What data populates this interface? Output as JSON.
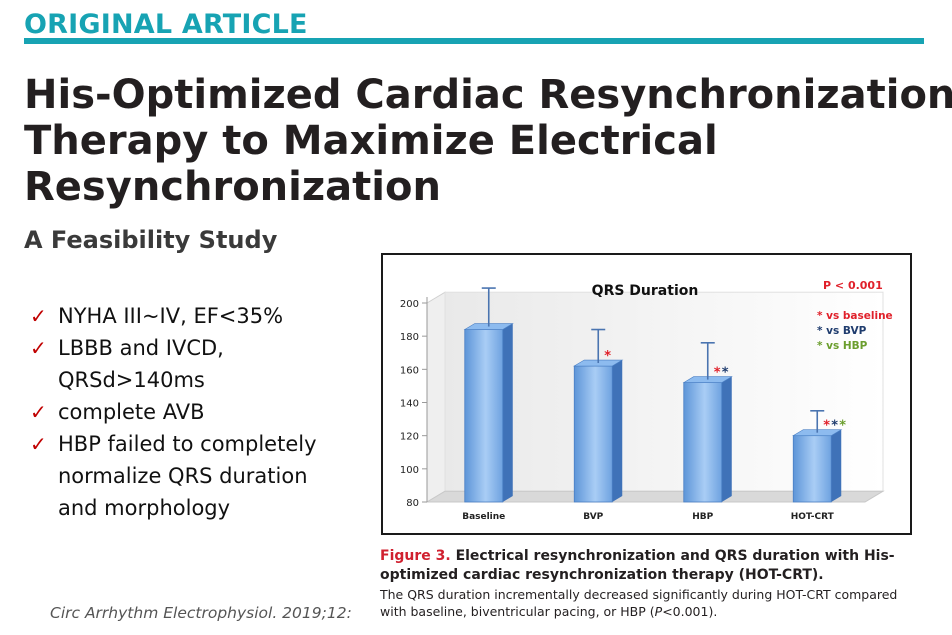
{
  "header": {
    "label": "ORIGINAL ARTICLE",
    "accent_color": "#17a3b3"
  },
  "article": {
    "title_lines": [
      "His-Optimized Cardiac Resynchronization",
      "Therapy to Maximize Electrical",
      "Resynchronization"
    ],
    "subtitle": "A Feasibility Study"
  },
  "bullets": [
    {
      "lines": [
        "NYHA III~IV, EF<35%"
      ]
    },
    {
      "lines": [
        "LBBB and IVCD,",
        "QRSd>140ms"
      ]
    },
    {
      "lines": [
        "complete AVB"
      ]
    },
    {
      "lines": [
        "HBP failed to completely",
        "normalize QRS duration",
        "and morphology"
      ]
    }
  ],
  "bullet_icon": "check-mark-icon",
  "bullet_icon_color": "#c00000",
  "chart_data": {
    "type": "bar",
    "title": "QRS Duration",
    "categories": [
      "Baseline",
      "BVP",
      "HBP",
      "HOT-CRT"
    ],
    "values": [
      184,
      162,
      152,
      120
    ],
    "error_upper": [
      209,
      184,
      176,
      135
    ],
    "ylim": [
      80,
      200
    ],
    "yticks": [
      80,
      100,
      120,
      140,
      160,
      180,
      200
    ],
    "xlabel": "",
    "ylabel": "",
    "bar_color": "#5b93d6",
    "p_value_label": "P < 0.001",
    "legend": [
      {
        "text": "* vs baseline",
        "color": "#e0202a"
      },
      {
        "text": "* vs BVP",
        "color": "#1f3c6e"
      },
      {
        "text": "* vs HBP",
        "color": "#6b9e2e"
      }
    ],
    "significance_marks": [
      [],
      [
        {
          "text": "*",
          "color": "#e0202a"
        }
      ],
      [
        {
          "text": "*",
          "color": "#e0202a"
        },
        {
          "text": "*",
          "color": "#1f3c6e"
        }
      ],
      [
        {
          "text": "*",
          "color": "#e0202a"
        },
        {
          "text": "*",
          "color": "#1f3c6e"
        },
        {
          "text": "*",
          "color": "#6b9e2e"
        }
      ]
    ],
    "grid": false,
    "legend_position": "top-right"
  },
  "caption": {
    "figure_label": "Figure 3.",
    "heading": "Electrical resynchronization and QRS duration with His-optimized cardiac resynchronization therapy (HOT-CRT).",
    "body_pre": "The QRS duration incrementally decreased significantly during HOT-CRT compared with baseline, biventricular pacing, or HBP (",
    "body_p": "P",
    "body_post": "<0.001)."
  },
  "citation": "Circ Arrhythm Electrophysiol. 2019;12:"
}
